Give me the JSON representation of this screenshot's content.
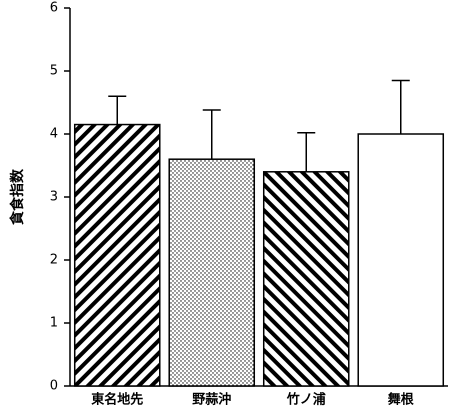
{
  "chart_data": {
    "type": "bar",
    "y_label": "貪食指数",
    "categories": [
      "東名地先",
      "野蒜沖",
      "竹ノ浦",
      "舞根"
    ],
    "values": [
      4.15,
      3.6,
      3.4,
      4.0
    ],
    "errors": [
      0.45,
      0.78,
      0.62,
      0.85
    ],
    "patterns": [
      "forward-hatch",
      "dots",
      "back-hatch",
      "none"
    ],
    "color": "#000000",
    "ylim": [
      0,
      6
    ],
    "yticks": [
      0,
      1,
      2,
      3,
      4,
      5,
      6
    ],
    "grid": false
  }
}
